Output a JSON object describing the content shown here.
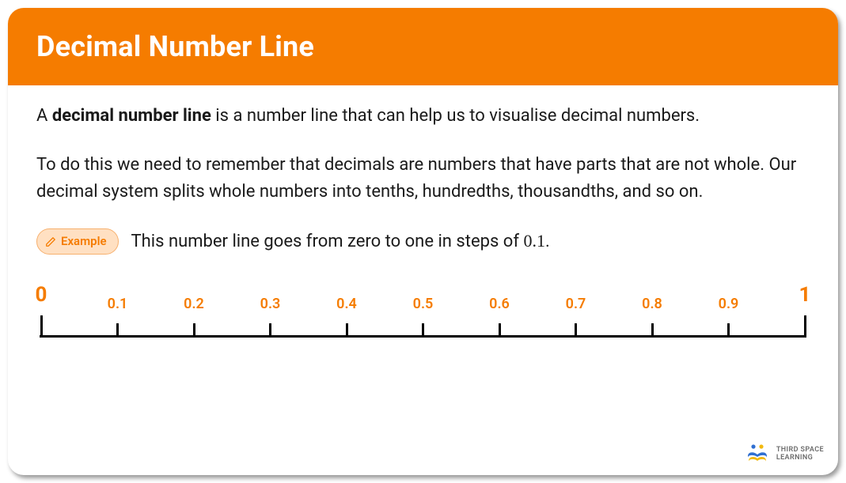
{
  "header": {
    "title": "Decimal Number Line"
  },
  "body": {
    "para1_prefix": "A ",
    "para1_bold": "decimal number line",
    "para1_suffix": " is a number line that can help us to visualise decimal numbers.",
    "para2": "To do this we need to remember that decimals are numbers that have parts that are not whole. Our decimal system splits whole numbers into tenths, hundredths, thousandths, and so on."
  },
  "example": {
    "badge_label": "Example",
    "text_prefix": "This number line goes from zero to one in steps of ",
    "step_value": "0.1",
    "text_suffix": "."
  },
  "numberline": {
    "line_color": "#000000",
    "label_color": "#f57c00",
    "ticks": [
      {
        "pos": 0.0,
        "label": "0",
        "major": true
      },
      {
        "pos": 0.1,
        "label": "0.1",
        "major": false
      },
      {
        "pos": 0.2,
        "label": "0.2",
        "major": false
      },
      {
        "pos": 0.3,
        "label": "0.3",
        "major": false
      },
      {
        "pos": 0.4,
        "label": "0.4",
        "major": false
      },
      {
        "pos": 0.5,
        "label": "0.5",
        "major": false
      },
      {
        "pos": 0.6,
        "label": "0.6",
        "major": false
      },
      {
        "pos": 0.7,
        "label": "0.7",
        "major": false
      },
      {
        "pos": 0.8,
        "label": "0.8",
        "major": false
      },
      {
        "pos": 0.9,
        "label": "0.9",
        "major": false
      },
      {
        "pos": 1.0,
        "label": "1",
        "major": true
      }
    ]
  },
  "brand": {
    "line1": "THIRD SPACE",
    "line2": "LEARNING",
    "colors": {
      "blue": "#2f6fd1",
      "yellow": "#f2b90f"
    }
  },
  "colors": {
    "header_bg": "#f57c00",
    "header_text": "#ffffff",
    "body_text": "#1a1a1a",
    "badge_bg": "#ffe0c2",
    "badge_border": "#f7b06e",
    "badge_text": "#f57c00"
  }
}
